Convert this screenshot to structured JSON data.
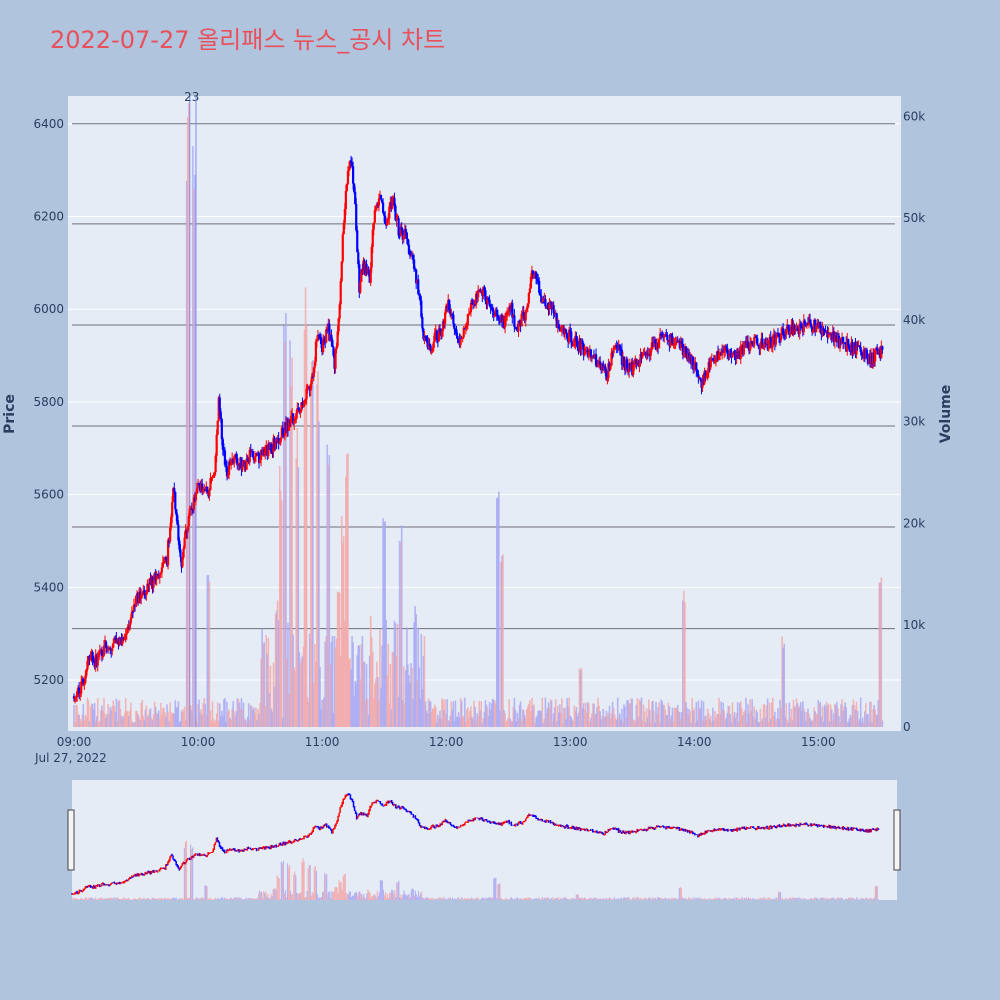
{
  "chart_data": {
    "type": "candlestick",
    "title": "2022-07-27 올리패스 뉴스_공시 차트",
    "ylabel": "Price",
    "y2label": "Volume",
    "ylim": [
      5090,
      6460
    ],
    "y2lim": [
      0,
      62000
    ],
    "y_ticks": [
      "5200",
      "5400",
      "5600",
      "5800",
      "6000",
      "6200",
      "6400"
    ],
    "y2_ticks": [
      "0",
      "10k",
      "20k",
      "30k",
      "40k",
      "50k",
      "60k"
    ],
    "x_ticks": [
      "09:00",
      "10:00",
      "11:00",
      "12:00",
      "13:00",
      "14:00",
      "15:00"
    ],
    "x_date_label": "Jul 27, 2022",
    "up_color": "#ff0000",
    "down_color": "#0000ff",
    "session": {
      "start": "09:00",
      "end": "15:40"
    },
    "news_markers": [
      {
        "time": "09:56",
        "label": "23"
      },
      {
        "time": "09:59",
        "label": ""
      }
    ],
    "reference_lines": [
      6400,
      6184,
      5966,
      5748,
      5530,
      5311
    ],
    "price_path": [
      [
        "09:00",
        5165
      ],
      [
        "09:05",
        5200
      ],
      [
        "09:08",
        5260
      ],
      [
        "09:10",
        5240
      ],
      [
        "09:15",
        5270
      ],
      [
        "09:20",
        5280
      ],
      [
        "09:25",
        5300
      ],
      [
        "09:30",
        5370
      ],
      [
        "09:35",
        5400
      ],
      [
        "09:40",
        5420
      ],
      [
        "09:45",
        5460
      ],
      [
        "09:48",
        5620
      ],
      [
        "09:52",
        5450
      ],
      [
        "09:55",
        5540
      ],
      [
        "10:00",
        5620
      ],
      [
        "10:05",
        5610
      ],
      [
        "10:08",
        5650
      ],
      [
        "10:10",
        5800
      ],
      [
        "10:12",
        5700
      ],
      [
        "10:14",
        5650
      ],
      [
        "10:18",
        5680
      ],
      [
        "10:22",
        5660
      ],
      [
        "10:26",
        5690
      ],
      [
        "10:30",
        5680
      ],
      [
        "10:35",
        5700
      ],
      [
        "10:40",
        5730
      ],
      [
        "10:45",
        5760
      ],
      [
        "10:50",
        5790
      ],
      [
        "10:55",
        5850
      ],
      [
        "10:58",
        5950
      ],
      [
        "11:00",
        5920
      ],
      [
        "11:03",
        5960
      ],
      [
        "11:06",
        5880
      ],
      [
        "11:08",
        5980
      ],
      [
        "11:10",
        6150
      ],
      [
        "11:12",
        6280
      ],
      [
        "11:14",
        6330
      ],
      [
        "11:16",
        6220
      ],
      [
        "11:18",
        6050
      ],
      [
        "11:20",
        6100
      ],
      [
        "11:23",
        6070
      ],
      [
        "11:25",
        6200
      ],
      [
        "11:28",
        6250
      ],
      [
        "11:31",
        6180
      ],
      [
        "11:34",
        6240
      ],
      [
        "11:37",
        6170
      ],
      [
        "11:40",
        6160
      ],
      [
        "11:43",
        6120
      ],
      [
        "11:46",
        6060
      ],
      [
        "11:49",
        5950
      ],
      [
        "11:52",
        5910
      ],
      [
        "11:55",
        5940
      ],
      [
        "11:58",
        5950
      ],
      [
        "12:01",
        6020
      ],
      [
        "12:04",
        5960
      ],
      [
        "12:07",
        5930
      ],
      [
        "12:10",
        5980
      ],
      [
        "12:13",
        6010
      ],
      [
        "12:16",
        6040
      ],
      [
        "12:19",
        6030
      ],
      [
        "12:22",
        6000
      ],
      [
        "12:25",
        5980
      ],
      [
        "12:28",
        5970
      ],
      [
        "12:31",
        6010
      ],
      [
        "12:34",
        5960
      ],
      [
        "12:38",
        5990
      ],
      [
        "12:42",
        6080
      ],
      [
        "12:45",
        6040
      ],
      [
        "12:48",
        6010
      ],
      [
        "12:51",
        6000
      ],
      [
        "12:55",
        5960
      ],
      [
        "13:00",
        5940
      ],
      [
        "13:05",
        5920
      ],
      [
        "13:10",
        5900
      ],
      [
        "13:15",
        5870
      ],
      [
        "13:18",
        5860
      ],
      [
        "13:22",
        5930
      ],
      [
        "13:26",
        5880
      ],
      [
        "13:30",
        5870
      ],
      [
        "13:35",
        5900
      ],
      [
        "13:40",
        5920
      ],
      [
        "13:45",
        5940
      ],
      [
        "13:50",
        5930
      ],
      [
        "13:55",
        5910
      ],
      [
        "14:00",
        5880
      ],
      [
        "14:03",
        5840
      ],
      [
        "14:06",
        5870
      ],
      [
        "14:10",
        5890
      ],
      [
        "14:15",
        5910
      ],
      [
        "14:20",
        5900
      ],
      [
        "14:25",
        5920
      ],
      [
        "14:30",
        5930
      ],
      [
        "14:35",
        5920
      ],
      [
        "14:40",
        5940
      ],
      [
        "14:45",
        5960
      ],
      [
        "14:50",
        5960
      ],
      [
        "14:55",
        5970
      ],
      [
        "15:00",
        5960
      ],
      [
        "15:05",
        5950
      ],
      [
        "15:10",
        5930
      ],
      [
        "15:15",
        5920
      ],
      [
        "15:20",
        5910
      ],
      [
        "15:25",
        5890
      ],
      [
        "15:30",
        5910
      ]
    ],
    "volume_peaks": [
      [
        "09:55",
        62000
      ],
      [
        "09:58",
        62000
      ],
      [
        "10:05",
        15000
      ],
      [
        "10:38",
        13000
      ],
      [
        "10:40",
        26000
      ],
      [
        "10:42",
        44000
      ],
      [
        "10:45",
        38000
      ],
      [
        "10:48",
        30000
      ],
      [
        "10:52",
        44000
      ],
      [
        "10:55",
        38000
      ],
      [
        "10:58",
        35000
      ],
      [
        "11:03",
        28000
      ],
      [
        "11:08",
        14000
      ],
      [
        "11:10",
        21000
      ],
      [
        "11:12",
        28000
      ],
      [
        "11:30",
        21000
      ],
      [
        "11:38",
        21000
      ],
      [
        "11:45",
        12000
      ],
      [
        "12:25",
        25000
      ],
      [
        "12:27",
        18000
      ],
      [
        "13:05",
        6000
      ],
      [
        "13:55",
        14000
      ],
      [
        "14:43",
        9000
      ],
      [
        "15:30",
        15000
      ]
    ]
  }
}
